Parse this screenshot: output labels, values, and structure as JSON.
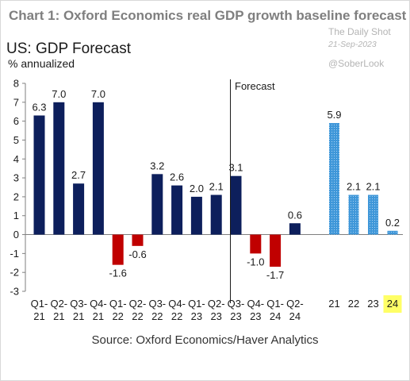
{
  "header": {
    "chart_title": "Chart 1: Oxford Economics real GDP growth baseline forecast",
    "watermark_source": "The Daily Shot",
    "watermark_date": "21-Sep-2023",
    "watermark_handle": "@SoberLook"
  },
  "footer": {
    "source": "Source: Oxford Economics/Haver Analytics"
  },
  "chart_data": {
    "type": "bar",
    "title": "US: GDP Forecast",
    "ylabel": "% annualized",
    "xlabel": "",
    "ylim": [
      -3,
      8
    ],
    "yticks": [
      -3,
      -2,
      -1,
      0,
      1,
      2,
      3,
      4,
      5,
      6,
      7,
      8
    ],
    "grid": false,
    "divider_label": "Forecast",
    "colors": {
      "actual_positive": "#0d1f5c",
      "negative": "#c00000",
      "annual": "#3f97d9",
      "highlight": "#ffff66"
    },
    "quarterly": {
      "categories": [
        "Q1-\n21",
        "Q2-\n21",
        "Q3-\n21",
        "Q4-\n21",
        "Q1-\n22",
        "Q2-\n22",
        "Q3-\n22",
        "Q4-\n22",
        "Q1-\n23",
        "Q2-\n23",
        "Q3-\n23",
        "Q4-\n23",
        "Q1-\n24",
        "Q2-\n24"
      ],
      "values": [
        6.3,
        7.0,
        2.7,
        7.0,
        -1.6,
        -0.6,
        3.2,
        2.6,
        2.0,
        2.1,
        3.1,
        -1.0,
        -1.7,
        0.6
      ],
      "labels": [
        "6.3",
        "7.0",
        "2.7",
        "7.0",
        "-1.6",
        "-0.6",
        "3.2",
        "2.6",
        "2.0",
        "2.1",
        "3.1",
        "-1.0",
        "-1.7",
        "0.6"
      ]
    },
    "annual": {
      "categories": [
        "21",
        "22",
        "23",
        "24"
      ],
      "values": [
        5.9,
        2.1,
        2.1,
        0.2
      ],
      "labels": [
        "5.9",
        "2.1",
        "2.1",
        "0.2"
      ],
      "highlighted": "24"
    }
  }
}
